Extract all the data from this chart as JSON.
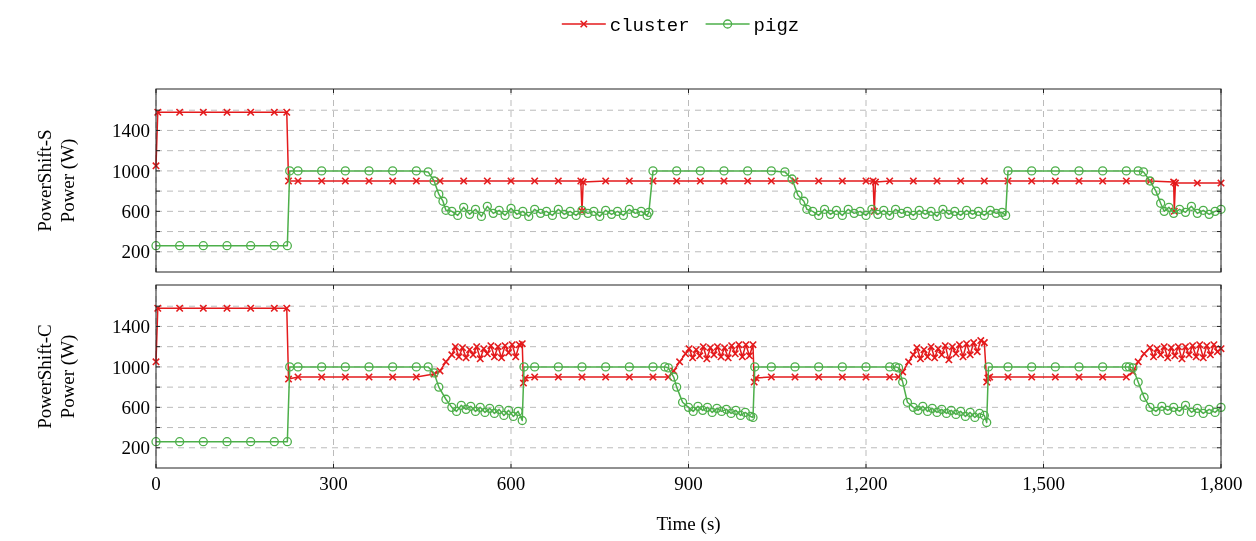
{
  "chart_data": [
    {
      "type": "line",
      "ylabel": "PowerShift-S\nPower (W)",
      "xlim": [
        0,
        1800
      ],
      "ylim": [
        0,
        1810
      ],
      "xticks": [
        {
          "value": 0,
          "label": null
        },
        {
          "value": 300,
          "label": null
        },
        {
          "value": 600,
          "label": null
        },
        {
          "value": 900,
          "label": null
        },
        {
          "value": 1200,
          "label": null
        },
        {
          "value": 1500,
          "label": null
        },
        {
          "value": 1800,
          "label": null
        }
      ],
      "yticks": [
        200,
        {
          "value": 400,
          "label": null
        },
        600,
        {
          "value": 800,
          "label": null
        },
        1000,
        {
          "value": 1200,
          "label": null
        },
        1400,
        {
          "value": 1600,
          "label": null
        }
      ],
      "grid": true,
      "legend": "top",
      "tick_labels": "y",
      "series": [
        {
          "name": "cluster",
          "color": "#e41a1c",
          "marker": "cross",
          "x": [
            0,
            3,
            40,
            80,
            120,
            160,
            200,
            221,
            224,
            240,
            280,
            320,
            360,
            400,
            440,
            480,
            520,
            560,
            600,
            640,
            680,
            718,
            720,
            722,
            760,
            800,
            840,
            880,
            920,
            960,
            1000,
            1040,
            1080,
            1120,
            1160,
            1200,
            1212,
            1214,
            1216,
            1240,
            1280,
            1320,
            1360,
            1400,
            1440,
            1480,
            1520,
            1560,
            1600,
            1640,
            1680,
            1720,
            1721,
            1723,
            1760,
            1800
          ],
          "values": [
            1050,
            1580,
            1580,
            1580,
            1580,
            1580,
            1580,
            1580,
            900,
            900,
            900,
            900,
            900,
            900,
            900,
            900,
            900,
            900,
            900,
            900,
            900,
            900,
            600,
            890,
            900,
            900,
            900,
            900,
            900,
            900,
            900,
            900,
            900,
            900,
            900,
            900,
            900,
            600,
            890,
            900,
            900,
            900,
            900,
            900,
            900,
            900,
            900,
            900,
            900,
            900,
            900,
            890,
            600,
            880,
            880,
            880
          ]
        },
        {
          "name": "pigz",
          "color": "#4daf4a",
          "marker": "circle",
          "x": [
            0,
            40,
            80,
            120,
            160,
            200,
            222,
            226,
            240,
            280,
            320,
            360,
            400,
            440,
            460,
            470,
            478,
            485,
            490,
            500,
            510,
            520,
            530,
            540,
            550,
            560,
            570,
            580,
            590,
            600,
            610,
            620,
            630,
            640,
            650,
            660,
            670,
            680,
            690,
            700,
            710,
            720,
            730,
            740,
            750,
            760,
            770,
            780,
            790,
            800,
            810,
            820,
            830,
            833,
            840,
            880,
            920,
            960,
            1000,
            1040,
            1063,
            1075,
            1085,
            1095,
            1100,
            1110,
            1120,
            1130,
            1140,
            1150,
            1160,
            1170,
            1180,
            1190,
            1200,
            1210,
            1220,
            1230,
            1240,
            1250,
            1260,
            1270,
            1280,
            1290,
            1300,
            1310,
            1320,
            1330,
            1340,
            1350,
            1360,
            1370,
            1380,
            1390,
            1400,
            1410,
            1420,
            1430,
            1436,
            1440,
            1480,
            1520,
            1560,
            1600,
            1640,
            1660,
            1669,
            1680,
            1690,
            1698,
            1704,
            1712,
            1720,
            1730,
            1740,
            1750,
            1760,
            1770,
            1780,
            1790,
            1800
          ],
          "values": [
            260,
            260,
            260,
            260,
            260,
            260,
            260,
            1000,
            1000,
            1000,
            1000,
            1000,
            1000,
            1000,
            990,
            900,
            770,
            700,
            610,
            600,
            560,
            640,
            570,
            620,
            550,
            650,
            580,
            610,
            560,
            630,
            570,
            600,
            550,
            620,
            580,
            600,
            560,
            620,
            570,
            600,
            560,
            610,
            580,
            600,
            550,
            610,
            570,
            600,
            560,
            620,
            580,
            600,
            560,
            590,
            1000,
            1000,
            1000,
            1000,
            1000,
            1000,
            990,
            920,
            760,
            700,
            620,
            600,
            560,
            620,
            570,
            610,
            560,
            620,
            580,
            600,
            560,
            620,
            570,
            610,
            560,
            620,
            580,
            600,
            560,
            610,
            570,
            600,
            550,
            620,
            570,
            600,
            560,
            610,
            570,
            600,
            560,
            610,
            580,
            590,
            560,
            1000,
            1000,
            1000,
            1000,
            1000,
            1000,
            1000,
            990,
            900,
            800,
            680,
            600,
            640,
            580,
            620,
            590,
            650,
            580,
            610,
            570,
            600,
            620
          ]
        }
      ]
    },
    {
      "type": "line",
      "ylabel": "PowerShift-C\nPower (W)",
      "xlabel": "Time (s)",
      "xlim": [
        0,
        1800
      ],
      "ylim": [
        0,
        1810
      ],
      "xticks": [
        0,
        300,
        600,
        900,
        {
          "value": 1200,
          "label": "1,200"
        },
        {
          "value": 1500,
          "label": "1,500"
        },
        {
          "value": 1800,
          "label": "1,800"
        }
      ],
      "yticks": [
        200,
        {
          "value": 400,
          "label": null
        },
        600,
        {
          "value": 800,
          "label": null
        },
        1000,
        {
          "value": 1200,
          "label": null
        },
        1400,
        {
          "value": 1600,
          "label": null
        }
      ],
      "grid": true,
      "series": [
        {
          "color": "#e41a1c",
          "marker": "cross",
          "x": [
            0,
            3,
            40,
            80,
            120,
            160,
            200,
            221,
            224,
            240,
            280,
            320,
            360,
            400,
            440,
            470,
            480,
            490,
            500,
            506,
            512,
            518,
            524,
            530,
            536,
            542,
            548,
            554,
            560,
            566,
            572,
            578,
            584,
            590,
            596,
            602,
            608,
            614,
            619,
            621,
            624,
            640,
            680,
            720,
            760,
            800,
            840,
            866,
            875,
            885,
            895,
            901,
            907,
            913,
            919,
            925,
            931,
            937,
            943,
            949,
            955,
            961,
            967,
            973,
            979,
            985,
            991,
            997,
            1003,
            1009,
            1011,
            1014,
            1040,
            1080,
            1120,
            1160,
            1200,
            1240,
            1255,
            1262,
            1272,
            1280,
            1286,
            1292,
            1298,
            1304,
            1310,
            1316,
            1322,
            1328,
            1334,
            1340,
            1346,
            1352,
            1358,
            1364,
            1370,
            1376,
            1382,
            1388,
            1394,
            1400,
            1404,
            1406,
            1409,
            1440,
            1480,
            1520,
            1560,
            1600,
            1640,
            1651,
            1660,
            1670,
            1680,
            1686,
            1692,
            1698,
            1704,
            1710,
            1716,
            1722,
            1728,
            1734,
            1740,
            1746,
            1752,
            1758,
            1764,
            1770,
            1776,
            1782,
            1788,
            1794,
            1800
          ],
          "values": [
            1050,
            1580,
            1580,
            1580,
            1580,
            1580,
            1580,
            1580,
            880,
            900,
            900,
            900,
            900,
            900,
            900,
            930,
            960,
            1050,
            1120,
            1200,
            1100,
            1190,
            1090,
            1170,
            1120,
            1200,
            1080,
            1180,
            1130,
            1210,
            1100,
            1200,
            1090,
            1210,
            1140,
            1220,
            1100,
            1220,
            1230,
            840,
            890,
            900,
            900,
            900,
            900,
            900,
            900,
            900,
            960,
            1050,
            1130,
            1180,
            1090,
            1170,
            1110,
            1200,
            1080,
            1190,
            1120,
            1200,
            1100,
            1190,
            1090,
            1210,
            1130,
            1220,
            1100,
            1220,
            1110,
            1220,
            850,
            890,
            900,
            900,
            900,
            900,
            900,
            900,
            900,
            950,
            1050,
            1120,
            1190,
            1080,
            1170,
            1100,
            1200,
            1090,
            1180,
            1120,
            1210,
            1070,
            1200,
            1130,
            1220,
            1100,
            1230,
            1120,
            1240,
            1150,
            1260,
            1240,
            850,
            890,
            900,
            900,
            900,
            900,
            900,
            900,
            900,
            950,
            1050,
            1130,
            1190,
            1100,
            1180,
            1120,
            1200,
            1090,
            1190,
            1110,
            1200,
            1080,
            1200,
            1120,
            1210,
            1100,
            1220,
            1090,
            1210,
            1120,
            1220,
            1150,
            1180
          ]
        },
        {
          "color": "#4daf4a",
          "marker": "circle",
          "x": [
            0,
            40,
            80,
            120,
            160,
            200,
            222,
            226,
            240,
            280,
            320,
            360,
            400,
            440,
            460,
            470,
            478,
            490,
            500,
            508,
            516,
            524,
            532,
            540,
            548,
            556,
            564,
            572,
            580,
            588,
            596,
            604,
            612,
            619,
            622,
            640,
            680,
            720,
            760,
            800,
            840,
            860,
            866,
            875,
            880,
            890,
            900,
            908,
            916,
            924,
            932,
            940,
            948,
            956,
            964,
            972,
            980,
            988,
            996,
            1005,
            1009,
            1012,
            1040,
            1080,
            1120,
            1160,
            1200,
            1240,
            1250,
            1255,
            1262,
            1270,
            1280,
            1288,
            1296,
            1304,
            1312,
            1320,
            1328,
            1336,
            1344,
            1352,
            1360,
            1368,
            1376,
            1384,
            1392,
            1400,
            1404,
            1407,
            1440,
            1480,
            1520,
            1560,
            1600,
            1640,
            1645,
            1651,
            1660,
            1670,
            1680,
            1690,
            1700,
            1710,
            1720,
            1730,
            1740,
            1750,
            1760,
            1770,
            1780,
            1790,
            1800
          ],
          "values": [
            260,
            260,
            260,
            260,
            260,
            260,
            260,
            1000,
            1000,
            1000,
            1000,
            1000,
            1000,
            1000,
            1000,
            940,
            800,
            680,
            600,
            560,
            620,
            580,
            610,
            560,
            600,
            550,
            590,
            540,
            580,
            520,
            570,
            510,
            560,
            470,
            1000,
            1000,
            1000,
            1000,
            1000,
            1000,
            1000,
            1000,
            990,
            900,
            800,
            650,
            600,
            560,
            610,
            570,
            600,
            550,
            590,
            560,
            580,
            540,
            570,
            520,
            550,
            510,
            500,
            1000,
            1000,
            1000,
            1000,
            1000,
            1000,
            1000,
            1000,
            990,
            850,
            650,
            600,
            570,
            610,
            560,
            590,
            550,
            580,
            540,
            570,
            530,
            560,
            510,
            550,
            500,
            540,
            520,
            450,
            1000,
            1000,
            1000,
            1000,
            1000,
            1000,
            1000,
            1000,
            990,
            850,
            700,
            600,
            560,
            610,
            570,
            600,
            560,
            620,
            550,
            590,
            540,
            580,
            550,
            600
          ]
        }
      ]
    }
  ]
}
